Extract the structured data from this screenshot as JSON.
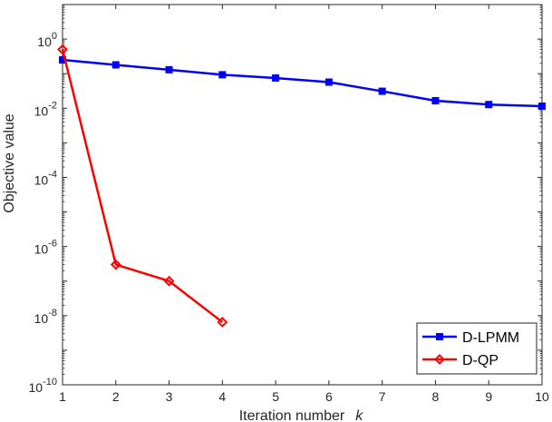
{
  "chart_data": {
    "type": "line",
    "title": "",
    "xlabel": "Iteration number",
    "xlabel_var": "k",
    "ylabel": "Objective value",
    "xlim": [
      1,
      10
    ],
    "ylim": [
      1e-10,
      10
    ],
    "yscale": "log",
    "xticks": [
      1,
      2,
      3,
      4,
      5,
      6,
      7,
      8,
      9,
      10
    ],
    "yticks": [
      {
        "value": 1,
        "mantissa": "10",
        "exp": "0"
      },
      {
        "value": 0.01,
        "mantissa": "10",
        "exp": "-2"
      },
      {
        "value": 0.0001,
        "mantissa": "10",
        "exp": "-4"
      },
      {
        "value": 1e-06,
        "mantissa": "10",
        "exp": "-6"
      },
      {
        "value": 1e-08,
        "mantissa": "10",
        "exp": "-8"
      },
      {
        "value": 1e-10,
        "mantissa": "10",
        "exp": "-10"
      }
    ],
    "grid": false,
    "legend_position": "bottom-right",
    "series": [
      {
        "name": "D-LPMM",
        "color": "#0000ff",
        "marker": "square",
        "x": [
          1,
          2,
          3,
          4,
          5,
          6,
          7,
          8,
          9,
          10
        ],
        "y": [
          0.25,
          0.18,
          0.13,
          0.093,
          0.075,
          0.057,
          0.031,
          0.0165,
          0.0128,
          0.0115
        ]
      },
      {
        "name": "D-QP",
        "color": "#ff0000",
        "marker": "diamond",
        "x": [
          1,
          2,
          3,
          4
        ],
        "y": [
          0.5,
          3e-07,
          1e-07,
          6.5e-09
        ]
      }
    ]
  }
}
